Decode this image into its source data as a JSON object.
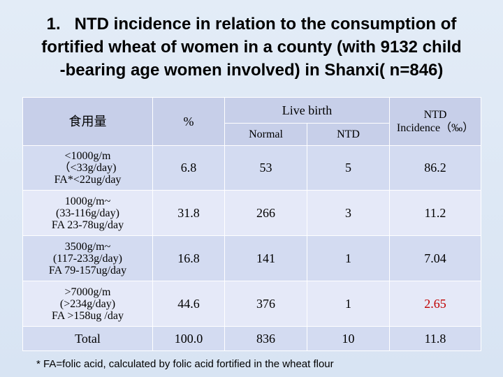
{
  "title": {
    "line1": "1.   NTD incidence in relation to the consumption of",
    "line2": "fortified wheat of women in a county (with 9132 child",
    "line3": "-bearing age women involved) in Shanxi( n=846)"
  },
  "table": {
    "headers": {
      "intake": "食用量",
      "percent": "%",
      "live_birth": "Live birth",
      "normal": "Normal",
      "ntd": "NTD",
      "incidence_line1": "NTD",
      "incidence_line2": "Incidence（‰）"
    },
    "rows": [
      {
        "category": [
          "<1000g/m",
          "（<33g/day)",
          "FA*<22ug/day"
        ],
        "percent": "6.8",
        "normal": "53",
        "ntd": "5",
        "incidence": "86.2"
      },
      {
        "category": [
          "1000g/m~",
          "(33-116g/day)",
          "FA 23-78ug/day"
        ],
        "percent": "31.8",
        "normal": "266",
        "ntd": "3",
        "incidence": "11.2"
      },
      {
        "category": [
          "3500g/m~",
          "(117-233g/day)",
          "FA 79-157ug/day"
        ],
        "percent": "16.8",
        "normal": "141",
        "ntd": "1",
        "incidence": "7.04"
      },
      {
        "category": [
          ">7000g/m",
          "(>234g/day)",
          "FA >158ug /day"
        ],
        "percent": "44.6",
        "normal": "376",
        "ntd": "1",
        "incidence": "2.65"
      }
    ],
    "total": {
      "label": "Total",
      "percent": "100.0",
      "normal": "836",
      "ntd": "10",
      "incidence": "11.8"
    }
  },
  "colors": {
    "highlight": "#c00000",
    "header_fill": "#c7cfe9",
    "row_dark": "#d3dbf1",
    "row_light": "#e5e9f8"
  },
  "footnote": "* FA=folic acid, calculated by folic acid fortified in the wheat flour"
}
